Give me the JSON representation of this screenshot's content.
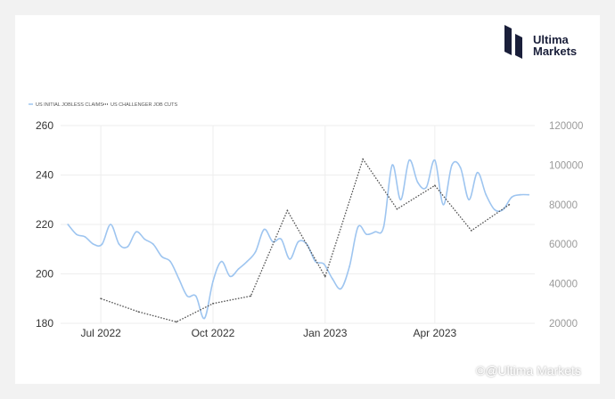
{
  "brand": {
    "line1": "Ultima",
    "line2": "Markets",
    "watermark": "©@Ultima Markets",
    "color": "#1a1f3a"
  },
  "chart_data": {
    "type": "line",
    "title": "",
    "x_tick_labels": [
      "Jul 2022",
      "Oct 2022",
      "Jan 2023",
      "Apr 2023"
    ],
    "x_tick_dates": [
      "2022-07-01",
      "2022-10-01",
      "2023-01-01",
      "2023-04-01"
    ],
    "xlim": [
      "2022-05-29",
      "2023-06-22"
    ],
    "y_left": {
      "ticks": [
        180,
        200,
        220,
        240,
        260
      ],
      "lim": [
        180,
        260
      ]
    },
    "y_right": {
      "ticks": [
        "20000",
        "40000",
        "60000",
        "80000",
        "100000",
        "120000"
      ],
      "lim": [
        20000,
        120000
      ]
    },
    "grid": true,
    "legend_position": "top-left",
    "series": [
      {
        "name": "US INITIAL JOBLESS CLAIMS",
        "axis": "left",
        "color": "#9ec5f0",
        "style": "solid",
        "x": [
          "2022-06-04",
          "2022-06-11",
          "2022-06-18",
          "2022-06-25",
          "2022-07-02",
          "2022-07-09",
          "2022-07-16",
          "2022-07-23",
          "2022-07-30",
          "2022-08-06",
          "2022-08-13",
          "2022-08-20",
          "2022-08-27",
          "2022-09-03",
          "2022-09-10",
          "2022-09-17",
          "2022-09-24",
          "2022-10-01",
          "2022-10-08",
          "2022-10-15",
          "2022-10-22",
          "2022-10-29",
          "2022-11-05",
          "2022-11-12",
          "2022-11-19",
          "2022-11-26",
          "2022-12-03",
          "2022-12-10",
          "2022-12-17",
          "2022-12-24",
          "2022-12-31",
          "2023-01-07",
          "2023-01-14",
          "2023-01-21",
          "2023-01-28",
          "2023-02-04",
          "2023-02-11",
          "2023-02-18",
          "2023-02-25",
          "2023-03-04",
          "2023-03-11",
          "2023-03-18",
          "2023-03-25",
          "2023-04-01",
          "2023-04-08",
          "2023-04-15",
          "2023-04-22",
          "2023-04-29",
          "2023-05-06",
          "2023-05-13",
          "2023-05-20",
          "2023-05-27",
          "2023-06-03",
          "2023-06-10",
          "2023-06-17"
        ],
        "values": [
          220,
          216,
          215,
          212,
          212,
          220,
          212,
          211,
          217,
          214,
          212,
          207,
          205,
          198,
          191,
          191,
          182,
          197,
          205,
          199,
          202,
          205,
          209,
          218,
          213,
          214,
          206,
          213,
          212,
          205,
          204,
          198,
          194,
          203,
          219,
          216,
          217,
          219,
          244,
          230,
          246,
          237,
          235,
          246,
          228,
          244,
          243,
          230,
          241,
          232,
          226,
          226,
          231,
          232,
          232
        ]
      },
      {
        "name": "US CHALLENGER JOB CUTS",
        "axis": "right",
        "color": "#555555",
        "style": "dotted",
        "x": [
          "2022-07-01",
          "2022-08-01",
          "2022-09-01",
          "2022-10-01",
          "2022-11-01",
          "2022-12-01",
          "2023-01-01",
          "2023-02-01",
          "2023-03-01",
          "2023-04-01",
          "2023-05-01",
          "2023-06-01"
        ],
        "values": [
          32500,
          25800,
          20700,
          30000,
          33800,
          77000,
          43600,
          103000,
          77800,
          89700,
          66900,
          80000
        ]
      }
    ]
  }
}
